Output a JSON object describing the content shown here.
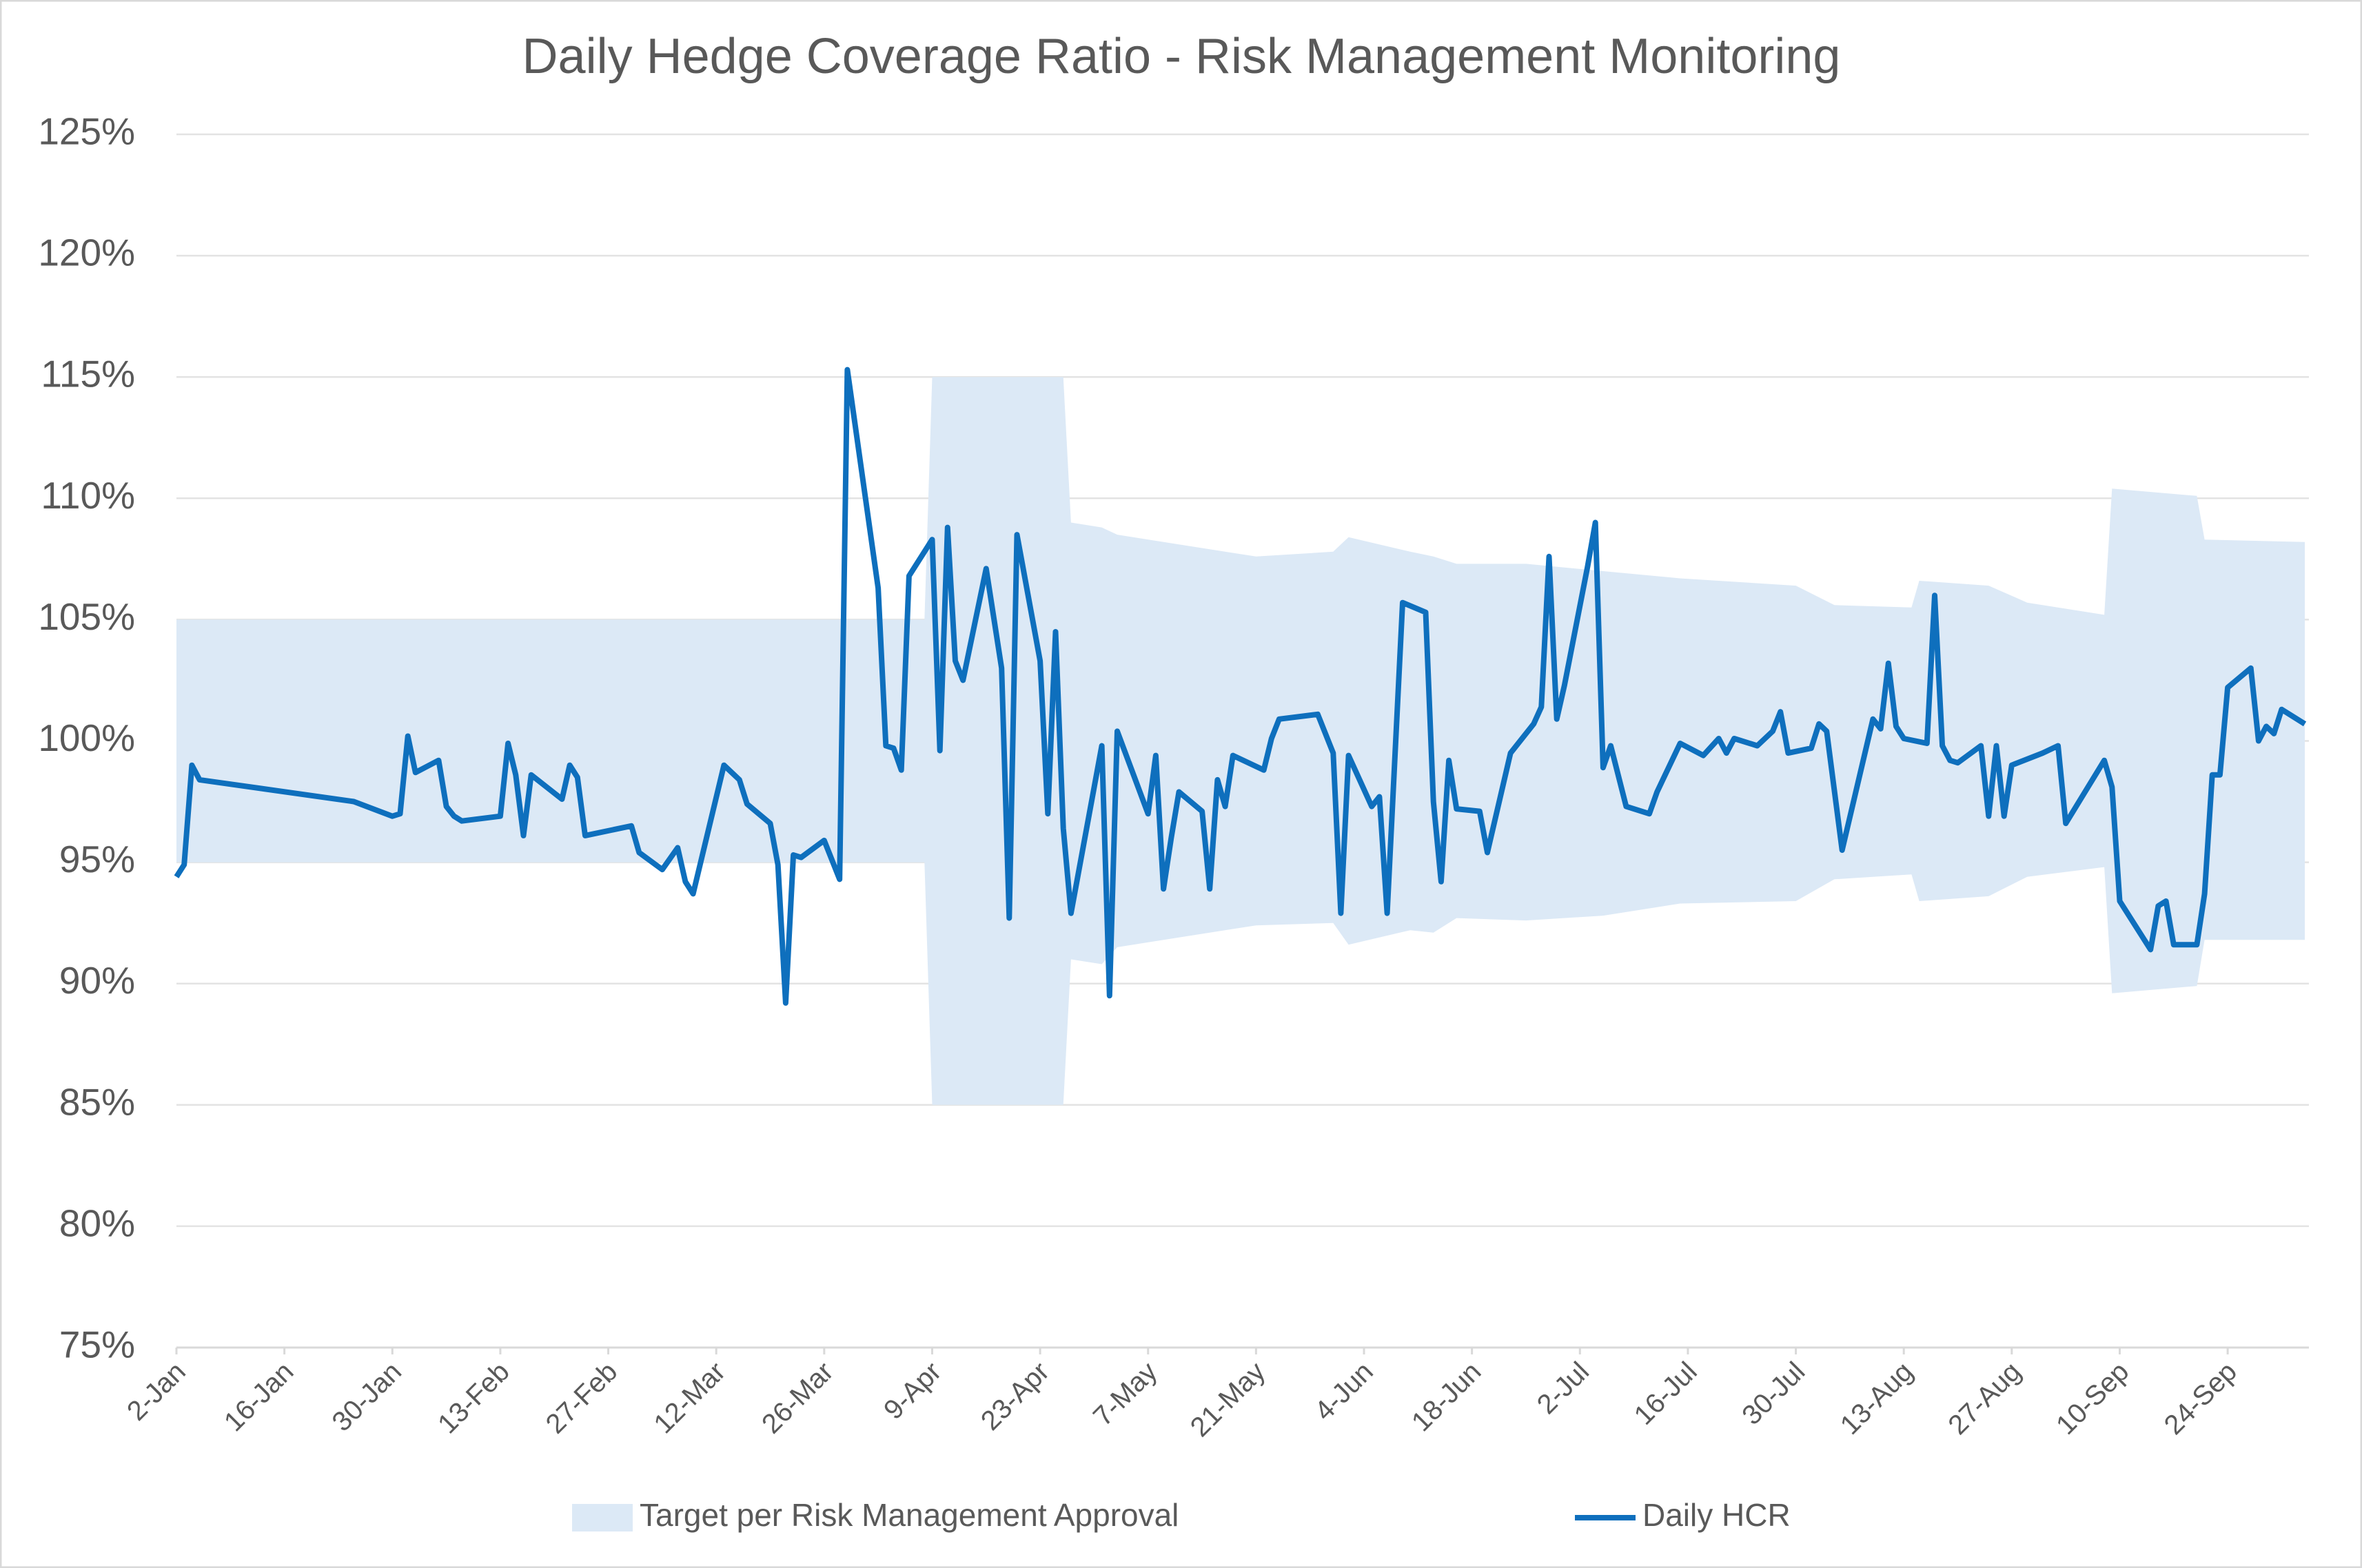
{
  "chart_data": {
    "type": "line",
    "title": "Daily Hedge Coverage Ratio - Risk Management Monitoring",
    "xlim": [
      "2-Jan",
      "4-Oct"
    ],
    "xticks": [
      "2-Jan",
      "16-Jan",
      "30-Jan",
      "13-Feb",
      "27-Feb",
      "12-Mar",
      "26-Mar",
      "9-Apr",
      "23-Apr",
      "7-May",
      "21-May",
      "4-Jun",
      "18-Jun",
      "2-Jul",
      "16-Jul",
      "30-Jul",
      "13-Aug",
      "27-Aug",
      "10-Sep",
      "24-Sep"
    ],
    "ylim": [
      75,
      125
    ],
    "yticks": [
      {
        "value": 75,
        "label": "75%"
      },
      {
        "value": 80,
        "label": "80%"
      },
      {
        "value": 85,
        "label": "85%"
      },
      {
        "value": 90,
        "label": "90%"
      },
      {
        "value": 95,
        "label": "95%"
      },
      {
        "value": 100,
        "label": "100%"
      },
      {
        "value": 105,
        "label": "105%"
      },
      {
        "value": 110,
        "label": "110%"
      },
      {
        "value": 115,
        "label": "115%"
      },
      {
        "value": 120,
        "label": "120%"
      },
      {
        "value": 125,
        "label": "125%"
      }
    ],
    "grid": true,
    "legend": "bottom",
    "series": [
      {
        "name": "Target per Risk Management Approval",
        "type": "band",
        "color": "#dce9f6",
        "x": [
          "2-Jan",
          "8-Apr",
          "9-Apr",
          "26-Apr",
          "27-Apr",
          "1-May",
          "3-May",
          "11-May",
          "21-May",
          "31-May",
          "2-Jun",
          "10-Jun",
          "13-Jun",
          "16-Jun",
          "25-Jun",
          "5-Jul",
          "15-Jul",
          "30-Jul",
          "4-Aug",
          "14-Aug",
          "15-Aug",
          "24-Aug",
          "29-Aug",
          "8-Sep",
          "9-Sep",
          "20-Sep",
          "21-Sep",
          "4-Oct"
        ],
        "lower": [
          95,
          95,
          85,
          85,
          91.0,
          90.8,
          91.5,
          91.9,
          92.4,
          92.5,
          91.6,
          92.2,
          92.1,
          92.7,
          92.6,
          92.8,
          93.3,
          93.4,
          94.3,
          94.5,
          93.4,
          93.6,
          94.4,
          94.8,
          89.6,
          89.9,
          91.8,
          91.8
        ],
        "upper": [
          105,
          105,
          115,
          115,
          109.0,
          108.8,
          108.5,
          108.1,
          107.6,
          107.8,
          108.4,
          107.8,
          107.6,
          107.3,
          107.3,
          107.0,
          106.7,
          106.4,
          105.6,
          105.5,
          106.6,
          106.4,
          105.7,
          105.2,
          110.4,
          110.1,
          108.3,
          108.2
        ]
      },
      {
        "name": "Daily HCR",
        "type": "line",
        "color": "#0e6fbd",
        "x": [
          "2-Jan",
          "3-Jan",
          "4-Jan",
          "5-Jan",
          "25-Jan",
          "30-Jan",
          "31-Jan",
          "1-Feb",
          "2-Feb",
          "5-Feb",
          "6-Feb",
          "7-Feb",
          "8-Feb",
          "13-Feb",
          "14-Feb",
          "15-Feb",
          "16-Feb",
          "17-Feb",
          "21-Feb",
          "22-Feb",
          "23-Feb",
          "24-Feb",
          "1-Mar",
          "2-Mar",
          "5-Mar",
          "7-Mar",
          "8-Mar",
          "9-Mar",
          "13-Mar",
          "15-Mar",
          "16-Mar",
          "19-Mar",
          "20-Mar",
          "21-Mar",
          "22-Mar",
          "23-Mar",
          "26-Mar",
          "28-Mar",
          "29-Mar",
          "2-Apr",
          "3-Apr",
          "4-Apr",
          "5-Apr",
          "6-Apr",
          "9-Apr",
          "10-Apr",
          "11-Apr",
          "12-Apr",
          "13-Apr",
          "16-Apr",
          "18-Apr",
          "19-Apr",
          "20-Apr",
          "23-Apr",
          "24-Apr",
          "25-Apr",
          "26-Apr",
          "27-Apr",
          "1-May",
          "2-May",
          "3-May",
          "7-May",
          "8-May",
          "9-May",
          "10-May",
          "11-May",
          "14-May",
          "15-May",
          "16-May",
          "17-May",
          "18-May",
          "22-May",
          "23-May",
          "24-May",
          "29-May",
          "31-May",
          "1-Jun",
          "2-Jun",
          "5-Jun",
          "6-Jun",
          "7-Jun",
          "9-Jun",
          "12-Jun",
          "13-Jun",
          "14-Jun",
          "15-Jun",
          "16-Jun",
          "19-Jun",
          "20-Jun",
          "23-Jun",
          "26-Jun",
          "27-Jun",
          "28-Jun",
          "29-Jun",
          "30-Jun",
          "3-Jul",
          "4-Jul",
          "5-Jul",
          "6-Jul",
          "8-Jul",
          "11-Jul",
          "12-Jul",
          "15-Jul",
          "18-Jul",
          "20-Jul",
          "21-Jul",
          "22-Jul",
          "25-Jul",
          "27-Jul",
          "28-Jul",
          "29-Jul",
          "1-Aug",
          "2-Aug",
          "3-Aug",
          "5-Aug",
          "9-Aug",
          "10-Aug",
          "11-Aug",
          "12-Aug",
          "13-Aug",
          "16-Aug",
          "17-Aug",
          "18-Aug",
          "19-Aug",
          "20-Aug",
          "23-Aug",
          "24-Aug",
          "25-Aug",
          "26-Aug",
          "27-Aug",
          "31-Aug",
          "2-Sep",
          "3-Sep",
          "8-Sep",
          "9-Sep",
          "10-Sep",
          "14-Sep",
          "15-Sep",
          "16-Sep",
          "17-Sep",
          "20-Sep",
          "21-Sep",
          "22-Sep",
          "23-Sep",
          "24-Sep",
          "27-Sep",
          "28-Sep",
          "29-Sep",
          "30-Sep",
          "1-Oct",
          "4-Oct"
        ],
        "values": [
          94.4,
          94.9,
          99.0,
          98.4,
          97.5,
          96.9,
          97.0,
          100.2,
          98.7,
          99.2,
          97.3,
          96.9,
          96.7,
          96.9,
          99.9,
          98.6,
          96.1,
          98.6,
          97.6,
          99.0,
          98.5,
          96.1,
          96.5,
          95.4,
          94.7,
          95.6,
          94.2,
          93.7,
          99.0,
          98.4,
          97.4,
          96.6,
          94.9,
          89.2,
          95.3,
          95.2,
          95.9,
          94.3,
          115.3,
          106.3,
          99.8,
          99.7,
          98.8,
          106.8,
          108.3,
          99.6,
          108.8,
          103.3,
          102.5,
          107.1,
          103.0,
          92.7,
          108.5,
          103.3,
          97.0,
          104.5,
          96.4,
          92.9,
          99.8,
          89.5,
          100.4,
          97.0,
          99.4,
          93.9,
          96.0,
          97.9,
          97.1,
          93.9,
          98.4,
          97.3,
          99.4,
          98.8,
          100.1,
          100.9,
          101.1,
          99.5,
          92.9,
          99.4,
          97.3,
          97.7,
          92.9,
          105.7,
          105.3,
          97.5,
          94.2,
          99.2,
          97.2,
          97.1,
          95.4,
          99.5,
          100.7,
          101.4,
          107.6,
          100.9,
          102.3,
          107.2,
          109.0,
          98.9,
          99.8,
          97.3,
          97.0,
          97.9,
          99.9,
          99.4,
          100.1,
          99.5,
          100.1,
          99.8,
          100.4,
          101.2,
          99.5,
          99.7,
          100.7,
          100.4,
          95.5,
          100.9,
          100.5,
          103.2,
          100.6,
          100.1,
          99.9,
          106.0,
          99.8,
          99.2,
          99.1,
          99.8,
          96.9,
          99.8,
          96.9,
          99.0,
          99.5,
          99.8,
          96.6,
          99.2,
          98.1,
          93.4,
          91.4,
          93.2,
          93.4,
          91.6,
          91.6,
          93.7,
          98.6,
          98.6,
          102.2,
          103.0,
          100.0,
          100.6,
          100.3,
          101.3,
          100.7
        ]
      }
    ]
  }
}
